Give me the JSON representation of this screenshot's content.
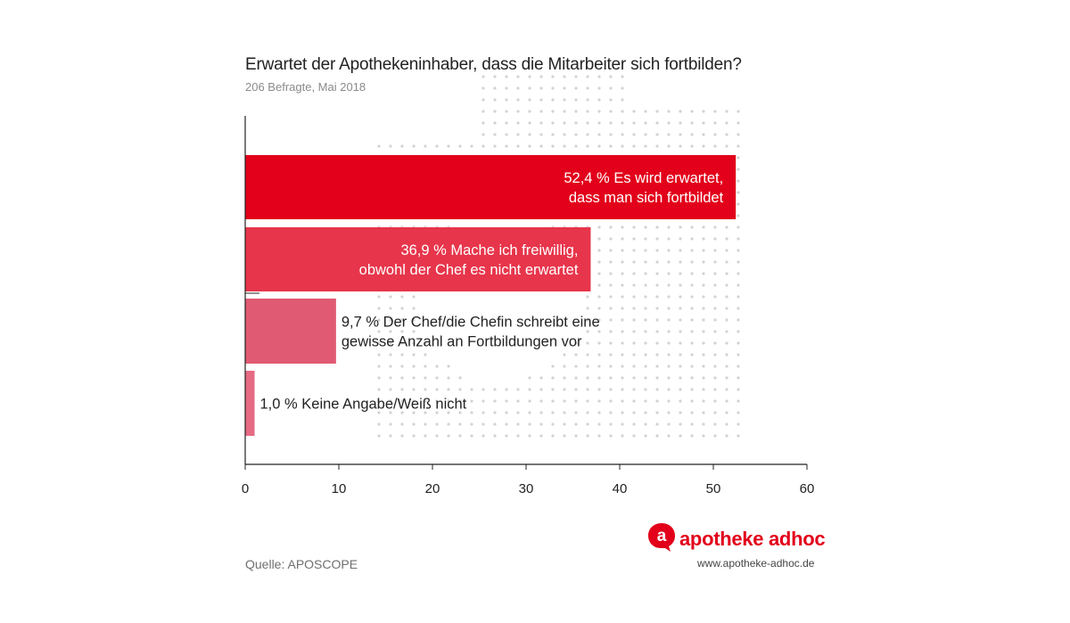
{
  "title": "Erwartet der Apothekeninhaber, dass die Mitarbeiter sich fortbilden?",
  "subtitle": "206 Befragte, Mai 2018",
  "source": "Quelle: APOSCOPE",
  "brand": {
    "logo_letter": "a",
    "name": "apotheke adhoc",
    "url": "www.apotheke-adhoc.de",
    "color": "#e2001a"
  },
  "chart_data": {
    "type": "bar",
    "orientation": "horizontal",
    "title": "Erwartet der Apothekeninhaber, dass die Mitarbeiter sich fortbilden?",
    "subtitle": "206 Befragte, Mai 2018",
    "xlim": [
      0,
      60
    ],
    "xticks": [
      "0",
      "10",
      "20",
      "30",
      "40",
      "50",
      "60"
    ],
    "grid": false,
    "categories": [
      "Es wird erwartet, dass man sich fortbildet",
      "Mache ich freiwillig, obwohl der Chef es nicht erwartet",
      "Der Chef/die Chefin schreibt eine gewisse Anzahl an Fortbildungen vor",
      "Keine Angabe/Weiß nicht"
    ],
    "values": [
      52.4,
      36.9,
      9.7,
      1.0
    ],
    "colors": [
      "#e2001a",
      "#e7354b",
      "#e05a73",
      "#e66a83"
    ],
    "labels": [
      {
        "lines": [
          "52,4 % Es wird erwartet,",
          "dass man sich fortbildet"
        ],
        "inside": true
      },
      {
        "lines": [
          "36,9 % Mache ich freiwillig,",
          "obwohl der Chef es nicht erwartet"
        ],
        "inside": true
      },
      {
        "lines": [
          "9,7 % Der Chef/die Chefin schreibt eine",
          "gewisse Anzahl an Fortbildungen vor"
        ],
        "inside": false
      },
      {
        "lines": [
          "1,0 % Keine Angabe/Weiß nicht"
        ],
        "inside": false
      }
    ]
  }
}
